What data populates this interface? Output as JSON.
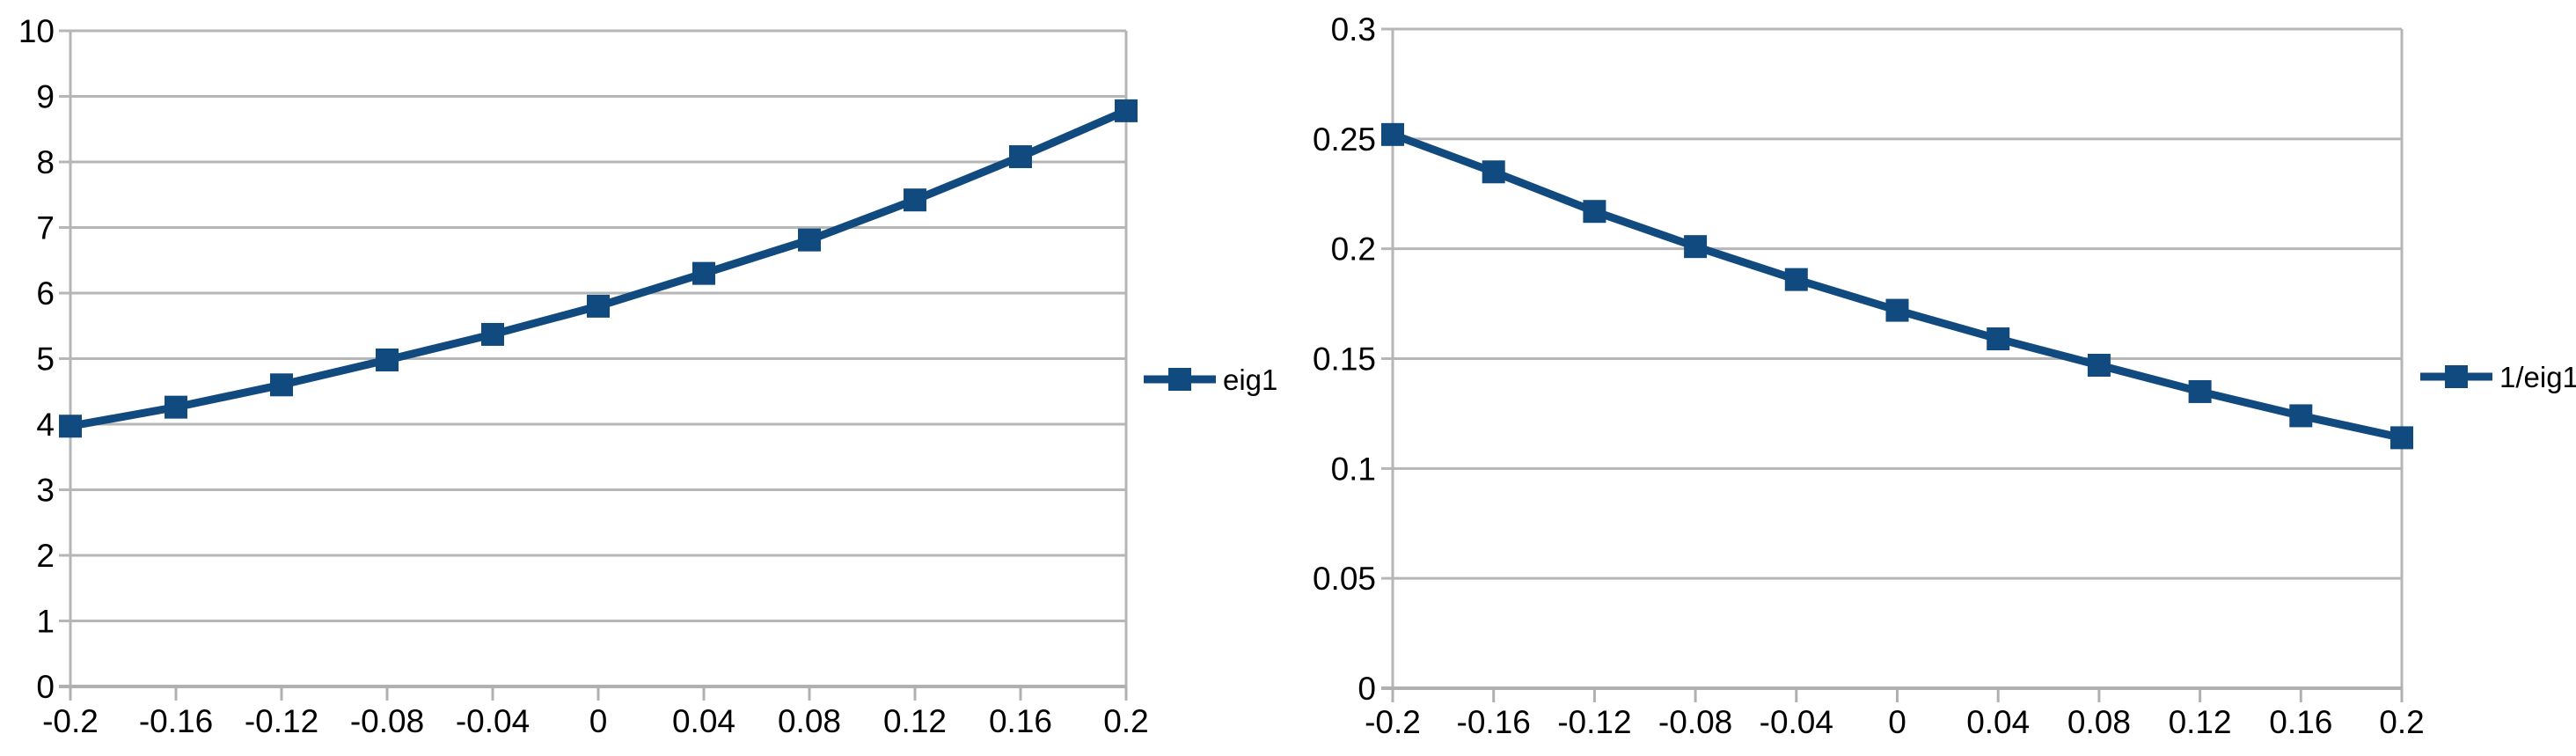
{
  "page": {
    "background": "#ffffff",
    "description_title": ""
  },
  "chart_data": [
    {
      "type": "line",
      "title": "",
      "xlabel": "",
      "ylabel": "",
      "x": [
        -0.2,
        -0.16,
        -0.12,
        -0.08,
        -0.04,
        0,
        0.04,
        0.08,
        0.12,
        0.16,
        0.2
      ],
      "x_tick_labels": [
        "-0.2",
        "-0.16",
        "-0.12",
        "-0.08",
        "-0.04",
        "0",
        "0.04",
        "0.08",
        "0.12",
        "0.16",
        "0.2"
      ],
      "xlim": [
        -0.2,
        0.2
      ],
      "ylim": [
        0,
        10
      ],
      "y_tick_step": 1,
      "y_tick_labels": [
        "0",
        "1",
        "2",
        "3",
        "4",
        "5",
        "6",
        "7",
        "8",
        "9",
        "10"
      ],
      "grid": true,
      "legend_position": "right",
      "series": [
        {
          "name": "eig1",
          "color": "#114a7e",
          "marker": "square",
          "values": [
            3.97,
            4.26,
            4.6,
            4.98,
            5.37,
            5.8,
            6.3,
            6.81,
            7.42,
            8.08,
            8.78
          ]
        }
      ],
      "grid_color": "#b6b6b6",
      "axis_color": "#b0b0b0"
    },
    {
      "type": "line",
      "title": "",
      "xlabel": "",
      "ylabel": "",
      "x": [
        -0.2,
        -0.16,
        -0.12,
        -0.08,
        -0.04,
        0,
        0.04,
        0.08,
        0.12,
        0.16,
        0.2
      ],
      "x_tick_labels": [
        "-0.2",
        "-0.16",
        "-0.12",
        "-0.08",
        "-0.04",
        "0",
        "0.04",
        "0.08",
        "0.12",
        "0.16",
        "0.2"
      ],
      "xlim": [
        -0.2,
        0.2
      ],
      "ylim": [
        0,
        0.3
      ],
      "y_tick_step": 0.05,
      "y_tick_labels": [
        "0",
        "0.05",
        "0.1",
        "0.15",
        "0.2",
        "0.25",
        "0.3"
      ],
      "grid": true,
      "legend_position": "right",
      "series": [
        {
          "name": "1/eig1",
          "color": "#114a7e",
          "marker": "square",
          "values": [
            0.252,
            0.235,
            0.217,
            0.201,
            0.186,
            0.172,
            0.159,
            0.147,
            0.135,
            0.124,
            0.114
          ]
        }
      ],
      "grid_color": "#b6b6b6",
      "axis_color": "#b0b0b0"
    }
  ]
}
